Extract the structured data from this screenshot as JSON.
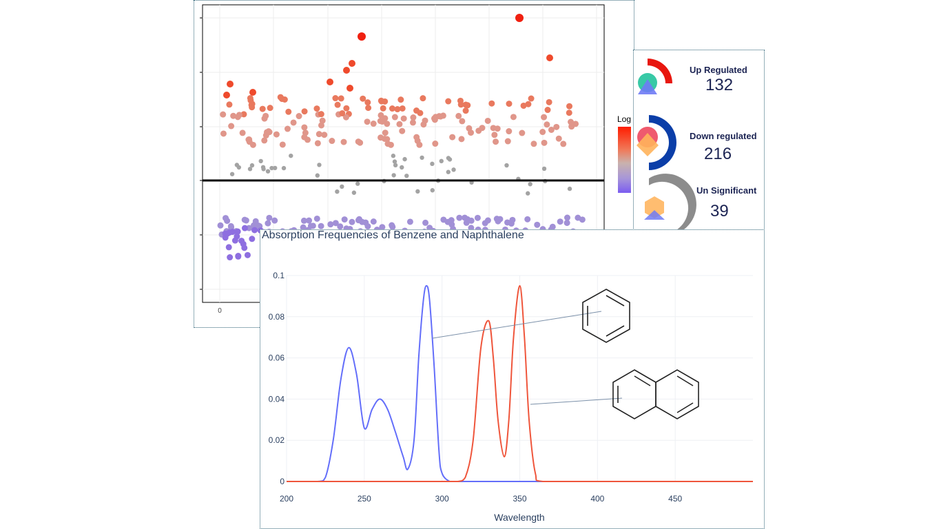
{
  "volcano": {
    "legend_title": "Log",
    "x_tick_label": "0"
  },
  "stats": {
    "up": {
      "label": "Up Regulated",
      "value": "132",
      "color": "#e8170f"
    },
    "down": {
      "label": "Down regulated",
      "value": "216",
      "color": "#0b3ea8"
    },
    "unsig": {
      "label": "Un Significant",
      "value": "39",
      "color": "#8c8c8c"
    }
  },
  "chart_data": {
    "type": "line",
    "title": "Absorption Frequencies of Benzene and Naphthalene",
    "xlabel": "Wavelength",
    "ylabel": "",
    "xlim": [
      200,
      500
    ],
    "ylim": [
      0,
      0.1
    ],
    "x_ticks": [
      "200",
      "250",
      "300",
      "350",
      "400",
      "450"
    ],
    "y_ticks": [
      "0",
      "0.02",
      "0.04",
      "0.06",
      "0.08",
      "0.1"
    ],
    "grid": true,
    "legend": "none",
    "series": [
      {
        "color": "#636efa",
        "x": [
          200,
          220,
          225,
          230,
          235,
          240,
          245,
          250,
          255,
          260,
          265,
          270,
          275,
          278,
          282,
          285,
          288,
          290,
          292,
          295,
          298,
          300,
          305,
          310,
          320,
          350,
          400,
          500
        ],
        "y": [
          0,
          0,
          0.002,
          0.02,
          0.05,
          0.065,
          0.052,
          0.026,
          0.035,
          0.04,
          0.035,
          0.024,
          0.012,
          0.006,
          0.02,
          0.06,
          0.088,
          0.095,
          0.088,
          0.055,
          0.015,
          0.004,
          0,
          0,
          0,
          0,
          0,
          0
        ]
      },
      {
        "color": "#ef553b",
        "x": [
          200,
          300,
          310,
          315,
          320,
          325,
          330,
          333,
          336,
          340,
          343,
          346,
          350,
          353,
          356,
          360,
          365,
          400,
          500
        ],
        "y": [
          0,
          0,
          0,
          0.002,
          0.02,
          0.065,
          0.078,
          0.06,
          0.03,
          0.012,
          0.03,
          0.07,
          0.095,
          0.07,
          0.03,
          0.004,
          0,
          0,
          0
        ]
      }
    ]
  }
}
